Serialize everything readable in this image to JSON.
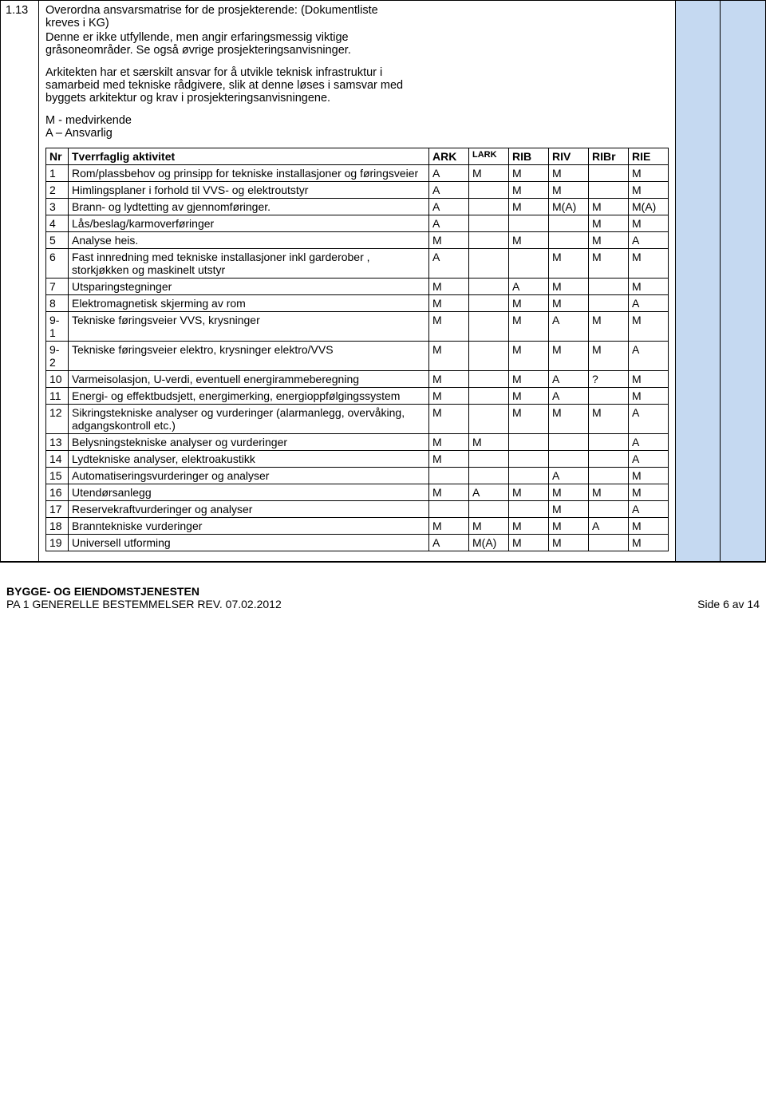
{
  "section_number": "1.13",
  "intro": {
    "title_l1": "Overordna ansvarsmatrise for de prosjekterende: (Dokumentliste",
    "title_l2": "kreves i KG)",
    "para1_l1": "Denne er ikke utfyllende, men angir erfaringsmessig viktige",
    "para1_l2": "gråsoneområder. Se også øvrige prosjekteringsanvisninger.",
    "para2_l1": "Arkitekten har et særskilt ansvar for å utvikle teknisk infrastruktur i",
    "para2_l2": "samarbeid med tekniske rådgivere, slik at denne løses i samsvar med",
    "para2_l3": "byggets arkitektur og krav i prosjekteringsanvisningene.",
    "legend_m": "M - medvirkende",
    "legend_a": "A – Ansvarlig"
  },
  "headers": {
    "nr": "Nr",
    "activity": "Tverrfaglig aktivitet",
    "ark": "ARK",
    "lark": "LARK",
    "rib": "RIB",
    "riv": "RIV",
    "ribr": "RIBr",
    "rie": "RIE"
  },
  "rows": [
    {
      "nr": "1",
      "act": "Rom/plassbehov og prinsipp for tekniske installasjoner og føringsveier",
      "ark": "A",
      "lark": "M",
      "rib": "M",
      "riv": "M",
      "ribr": "",
      "rie": "M"
    },
    {
      "nr": "2",
      "act": "Himlingsplaner i forhold til VVS- og elektroutstyr",
      "ark": "A",
      "lark": "",
      "rib": "M",
      "riv": "M",
      "ribr": "",
      "rie": "M"
    },
    {
      "nr": "3",
      "act": "Brann- og lydtetting av gjennomføringer.",
      "ark": "A",
      "lark": "",
      "rib": "M",
      "riv": "M(A)",
      "ribr": "M",
      "rie": "M(A)"
    },
    {
      "nr": "4",
      "act": "Lås/beslag/karmoverføringer",
      "ark": "A",
      "lark": "",
      "rib": "",
      "riv": "",
      "ribr": "M",
      "rie": "M"
    },
    {
      "nr": "5",
      "act": "Analyse heis.",
      "ark": "M",
      "lark": "",
      "rib": "M",
      "riv": "",
      "ribr": "M",
      "rie": "A"
    },
    {
      "nr": "6",
      "act": "Fast innredning med tekniske installasjoner inkl garderober , storkjøkken og maskinelt utstyr",
      "ark": "A",
      "lark": "",
      "rib": "",
      "riv": "M",
      "ribr": "M",
      "rie": "M"
    },
    {
      "nr": "7",
      "act": "Utsparingstegninger",
      "ark": "M",
      "lark": "",
      "rib": "A",
      "riv": "M",
      "ribr": "",
      "rie": "M"
    },
    {
      "nr": "8",
      "act": "Elektromagnetisk skjerming av rom",
      "ark": "M",
      "lark": "",
      "rib": "M",
      "riv": "M",
      "ribr": "",
      "rie": "A"
    },
    {
      "nr": "9-1",
      "act": "Tekniske føringsveier VVS, krysninger",
      "ark": "M",
      "lark": "",
      "rib": "M",
      "riv": "A",
      "ribr": "M",
      "rie": "M"
    },
    {
      "nr": "9-2",
      "act": "Tekniske føringsveier elektro, krysninger elektro/VVS",
      "ark": "M",
      "lark": "",
      "rib": "M",
      "riv": "M",
      "ribr": "M",
      "rie": "A"
    },
    {
      "nr": "10",
      "act": "Varmeisolasjon, U-verdi, eventuell energirammeberegning",
      "ark": "M",
      "lark": "",
      "rib": "M",
      "riv": "A",
      "ribr": "?",
      "rie": "M"
    },
    {
      "nr": "11",
      "act": "Energi- og effektbudsjett, energimerking, energioppfølgingssystem",
      "ark": "M",
      "lark": "",
      "rib": "M",
      "riv": "A",
      "ribr": "",
      "rie": "M"
    },
    {
      "nr": "12",
      "act": "Sikringstekniske analyser og vurderinger (alarmanlegg, overvåking, adgangskontroll etc.)",
      "ark": "M",
      "lark": "",
      "rib": "M",
      "riv": "M",
      "ribr": "M",
      "rie": "A"
    },
    {
      "nr": "13",
      "act": "Belysningstekniske analyser og vurderinger",
      "ark": "M",
      "lark": "M",
      "rib": "",
      "riv": "",
      "ribr": "",
      "rie": "A"
    },
    {
      "nr": "14",
      "act": "Lydtekniske analyser, elektroakustikk",
      "ark": "M",
      "lark": "",
      "rib": "",
      "riv": "",
      "ribr": "",
      "rie": "A"
    },
    {
      "nr": "15",
      "act": "Automatiseringsvurderinger og analyser",
      "ark": "",
      "lark": "",
      "rib": "",
      "riv": "A",
      "ribr": "",
      "rie": "M"
    },
    {
      "nr": "16",
      "act": "Utendørsanlegg",
      "ark": "M",
      "lark": "A",
      "rib": "M",
      "riv": "M",
      "ribr": "M",
      "rie": "M"
    },
    {
      "nr": "17",
      "act": "Reservekraftvurderinger og analyser",
      "ark": "",
      "lark": "",
      "rib": "",
      "riv": "M",
      "ribr": "",
      "rie": "A"
    },
    {
      "nr": "18",
      "act": "Branntekniske vurderinger",
      "ark": "M",
      "lark": "M",
      "rib": "M",
      "riv": "M",
      "ribr": "A",
      "rie": "M"
    },
    {
      "nr": "19",
      "act": "Universell utforming",
      "ark": "A",
      "lark": "M(A)",
      "rib": "M",
      "riv": "M",
      "ribr": "",
      "rie": "M"
    }
  ],
  "footer": {
    "org": "BYGGE- OG EIENDOMSTJENESTEN",
    "doc": "PA 1 GENERELLE BESTEMMELSER REV. 07.02.2012",
    "page": "Side 6 av 14"
  },
  "colors": {
    "side_bg": "#c5d9f1",
    "border": "#000000",
    "text": "#000000",
    "bg": "#ffffff"
  }
}
